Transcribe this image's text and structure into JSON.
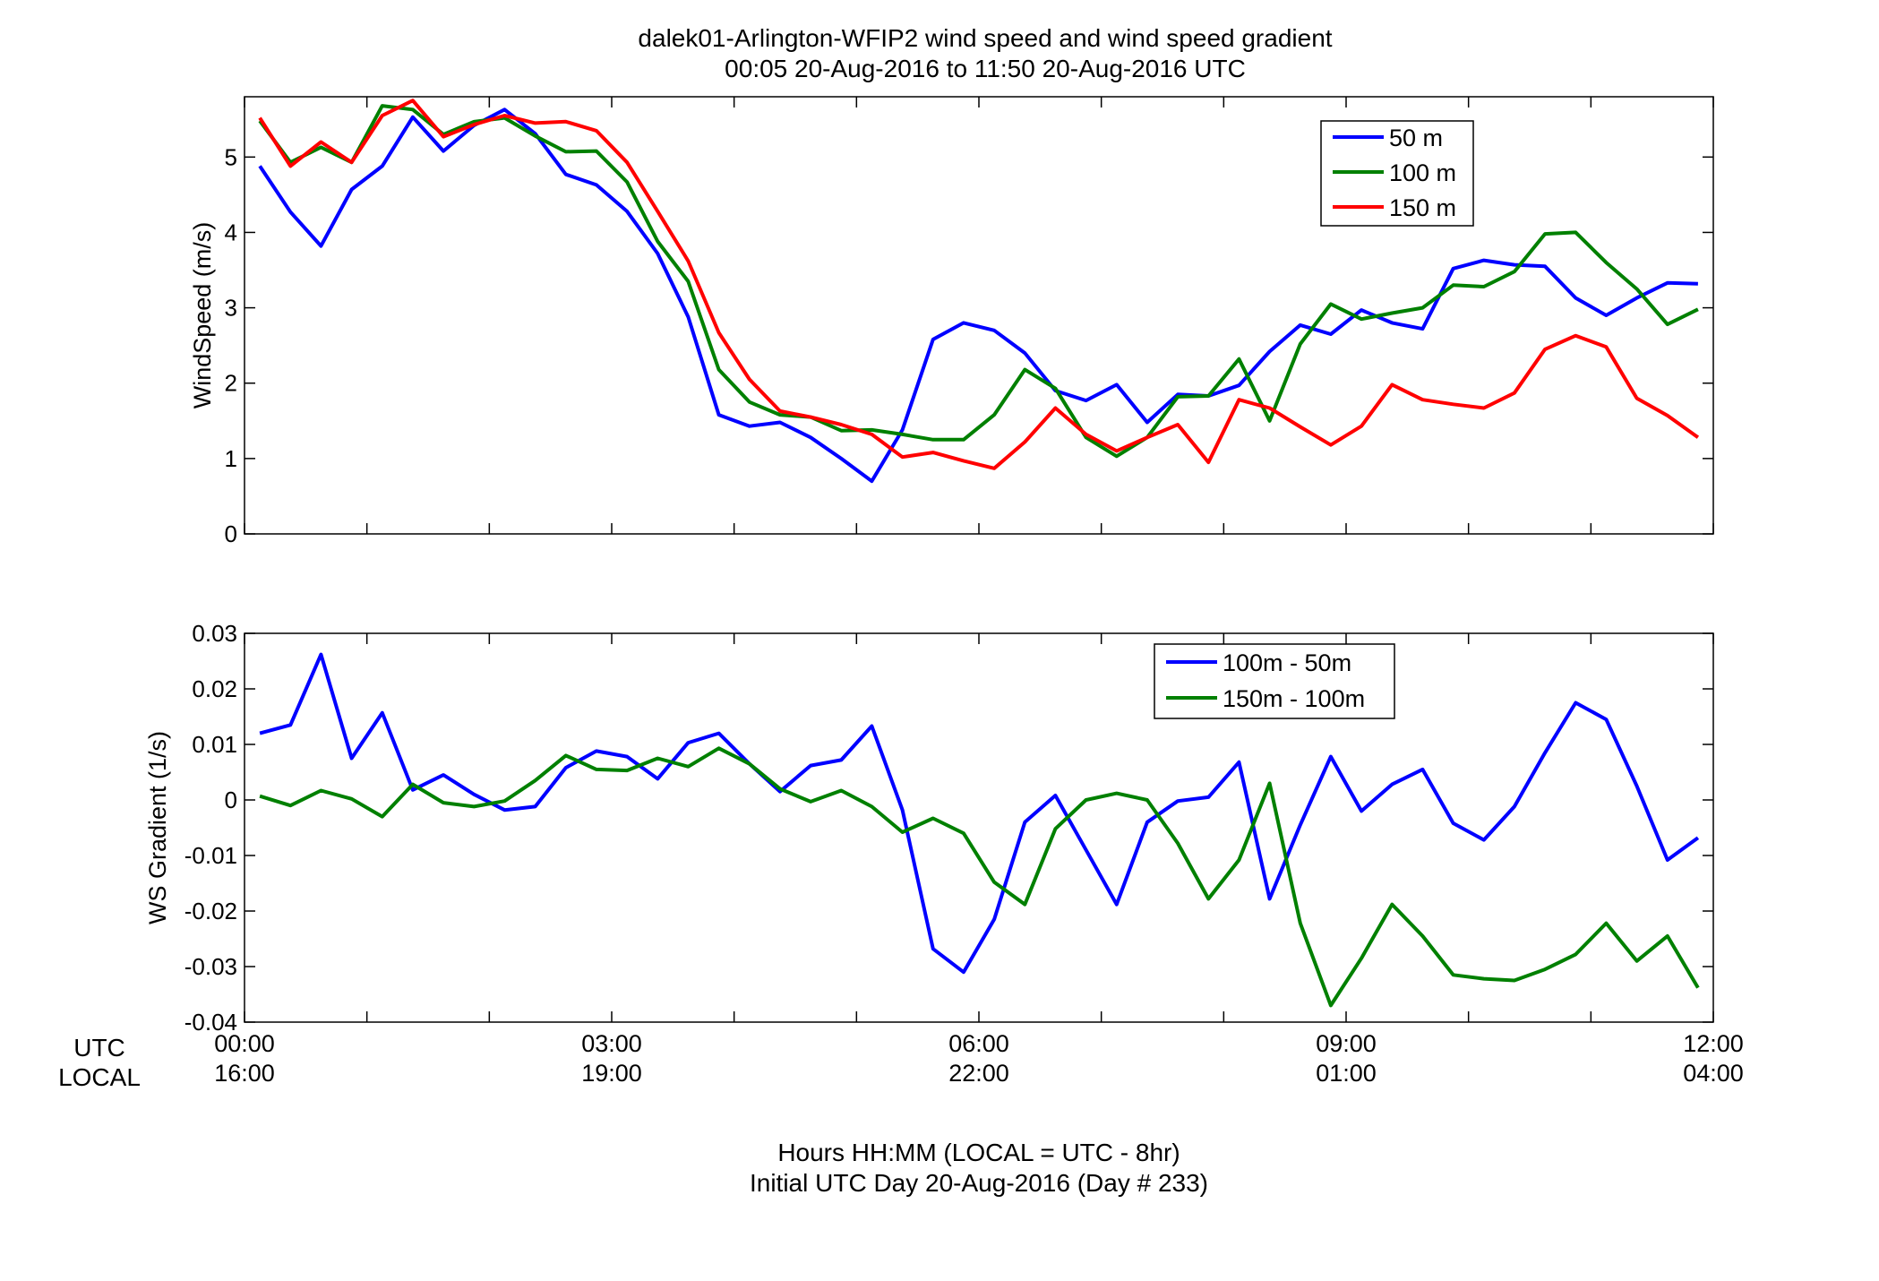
{
  "figure": {
    "title_line1": "dalek01-Arlington-WFIP2  wind speed and wind speed gradient",
    "title_line2": "00:05 20-Aug-2016 to 11:50 20-Aug-2016  UTC",
    "xlabel_line1": "Hours HH:MM  (LOCAL = UTC - 8hr)",
    "xlabel_line2": "Initial UTC Day 20-Aug-2016 (Day # 233)",
    "row_label_utc": "UTC",
    "row_label_local": "LOCAL",
    "x_ticks_utc": [
      "00:00",
      "03:00",
      "06:00",
      "09:00",
      "12:00"
    ],
    "x_ticks_local": [
      "16:00",
      "19:00",
      "22:00",
      "01:00",
      "04:00"
    ]
  },
  "chart_data": [
    {
      "type": "line",
      "panel": "wind-speed",
      "ylabel": "WindSpeed (m/s)",
      "xlim": [
        0,
        12
      ],
      "ylim": [
        0,
        5.8
      ],
      "y_ticks": [
        0,
        1,
        2,
        3,
        4,
        5
      ],
      "x_ticks": [
        0,
        3,
        6,
        9,
        12
      ],
      "grid": false,
      "legend_position": "top-right",
      "x": [
        0.125,
        0.375,
        0.625,
        0.875,
        1.125,
        1.375,
        1.625,
        1.875,
        2.125,
        2.375,
        2.625,
        2.875,
        3.125,
        3.375,
        3.625,
        3.875,
        4.125,
        4.375,
        4.625,
        4.875,
        5.125,
        5.375,
        5.625,
        5.875,
        6.125,
        6.375,
        6.625,
        6.875,
        7.125,
        7.375,
        7.625,
        7.875,
        8.125,
        8.375,
        8.625,
        8.875,
        9.125,
        9.375,
        9.625,
        9.875,
        10.125,
        10.375,
        10.625,
        10.875,
        11.125,
        11.375,
        11.625,
        11.875
      ],
      "series": [
        {
          "name": "50 m",
          "color": "#0000ff",
          "values": [
            4.88,
            4.27,
            3.82,
            4.57,
            4.88,
            5.53,
            5.08,
            5.42,
            5.63,
            5.31,
            4.77,
            4.63,
            4.28,
            3.72,
            2.88,
            1.58,
            1.43,
            1.48,
            1.28,
            1.0,
            0.7,
            1.38,
            2.58,
            2.8,
            2.7,
            2.4,
            1.9,
            1.77,
            1.98,
            1.48,
            1.85,
            1.83,
            1.97,
            2.42,
            2.77,
            2.65,
            2.97,
            2.8,
            2.72,
            3.52,
            3.63,
            3.57,
            3.55,
            3.13,
            2.9,
            3.13,
            3.33,
            3.32
          ]
        },
        {
          "name": "100 m",
          "color": "#008000",
          "values": [
            5.48,
            4.93,
            5.13,
            4.93,
            5.68,
            5.63,
            5.3,
            5.47,
            5.52,
            5.28,
            5.07,
            5.08,
            4.67,
            3.88,
            3.35,
            2.18,
            1.75,
            1.58,
            1.55,
            1.37,
            1.38,
            1.32,
            1.25,
            1.25,
            1.58,
            2.18,
            1.93,
            1.28,
            1.03,
            1.28,
            1.82,
            1.83,
            2.32,
            1.5,
            2.52,
            3.05,
            2.85,
            2.93,
            3.0,
            3.3,
            3.28,
            3.48,
            3.98,
            4.0,
            3.6,
            3.25,
            2.78,
            2.98
          ]
        },
        {
          "name": "150 m",
          "color": "#ff0000",
          "values": [
            5.52,
            4.88,
            5.2,
            4.93,
            5.55,
            5.75,
            5.27,
            5.43,
            5.55,
            5.45,
            5.47,
            5.35,
            4.93,
            4.28,
            3.62,
            2.67,
            2.05,
            1.63,
            1.55,
            1.45,
            1.32,
            1.02,
            1.08,
            0.97,
            0.87,
            1.22,
            1.67,
            1.32,
            1.1,
            1.28,
            1.45,
            0.95,
            1.78,
            1.67,
            1.42,
            1.18,
            1.43,
            1.98,
            1.78,
            1.72,
            1.67,
            1.87,
            2.45,
            2.63,
            2.48,
            1.8,
            1.57,
            1.28
          ]
        }
      ]
    },
    {
      "type": "line",
      "panel": "ws-gradient",
      "ylabel": "WS Gradient (1/s)",
      "xlim": [
        0,
        12
      ],
      "ylim": [
        -0.04,
        0.03
      ],
      "y_ticks": [
        -0.04,
        -0.03,
        -0.02,
        -0.01,
        0,
        0.01,
        0.02,
        0.03
      ],
      "x_ticks": [
        0,
        3,
        6,
        9,
        12
      ],
      "grid": false,
      "legend_position": "top-right",
      "x": [
        0.125,
        0.375,
        0.625,
        0.875,
        1.125,
        1.375,
        1.625,
        1.875,
        2.125,
        2.375,
        2.625,
        2.875,
        3.125,
        3.375,
        3.625,
        3.875,
        4.125,
        4.375,
        4.625,
        4.875,
        5.125,
        5.375,
        5.625,
        5.875,
        6.125,
        6.375,
        6.625,
        6.875,
        7.125,
        7.375,
        7.625,
        7.875,
        8.125,
        8.375,
        8.625,
        8.875,
        9.125,
        9.375,
        9.625,
        9.875,
        10.125,
        10.375,
        10.625,
        10.875,
        11.125,
        11.375,
        11.625,
        11.875
      ],
      "series": [
        {
          "name": "100m - 50m",
          "color": "#0000ff",
          "values": [
            0.012,
            0.0135,
            0.0262,
            0.0075,
            0.0157,
            0.0018,
            0.0045,
            0.001,
            -0.0018,
            -0.0012,
            0.0058,
            0.0088,
            0.0078,
            0.0038,
            0.0103,
            0.012,
            0.0065,
            0.0015,
            0.0062,
            0.0072,
            0.0133,
            -0.0018,
            -0.0268,
            -0.031,
            -0.0215,
            -0.004,
            0.0008,
            -0.009,
            -0.0188,
            -0.004,
            -0.0002,
            0.0005,
            0.0068,
            -0.0178,
            -0.0045,
            0.0078,
            -0.002,
            0.0028,
            0.0055,
            -0.0042,
            -0.0072,
            -0.0012,
            0.0085,
            0.0175,
            0.0145,
            0.0025,
            -0.0108,
            -0.0068
          ]
        },
        {
          "name": "150m - 100m",
          "color": "#008000",
          "values": [
            0.0007,
            -0.001,
            0.0017,
            0.0002,
            -0.003,
            0.0028,
            -0.0005,
            -0.0012,
            -0.0002,
            0.0035,
            0.008,
            0.0055,
            0.0053,
            0.0075,
            0.006,
            0.0093,
            0.0065,
            0.002,
            -0.0003,
            0.0017,
            -0.0012,
            -0.0058,
            -0.0033,
            -0.006,
            -0.0148,
            -0.0188,
            -0.0052,
            0.0,
            0.0012,
            0.0,
            -0.0078,
            -0.0178,
            -0.0108,
            0.003,
            -0.0222,
            -0.037,
            -0.0285,
            -0.0188,
            -0.0245,
            -0.0315,
            -0.0322,
            -0.0325,
            -0.0305,
            -0.0278,
            -0.0222,
            -0.029,
            -0.0245,
            -0.0338
          ]
        }
      ]
    }
  ]
}
